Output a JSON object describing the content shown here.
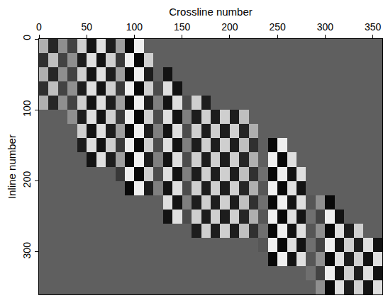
{
  "chart_data": {
    "type": "heatmap",
    "x_label": "Crossline number",
    "y_label": "Inline number",
    "x": [
      5,
      15,
      25,
      35,
      45,
      55,
      65,
      75,
      85,
      95,
      105,
      115,
      125,
      135,
      145,
      155,
      165,
      175,
      185,
      195,
      205,
      215,
      225,
      235,
      245,
      255,
      265,
      275,
      285,
      295,
      305,
      315,
      325,
      335,
      345,
      355
    ],
    "y": [
      10,
      30,
      50,
      70,
      90,
      110,
      130,
      150,
      170,
      190,
      210,
      230,
      250,
      270,
      290,
      310,
      330,
      350
    ],
    "z": [
      [
        0.5,
        -0.6,
        0.3,
        -0.3,
        0.7,
        -0.8,
        0.8,
        -0.7,
        0.4,
        -0.9,
        0.9,
        0,
        0,
        0,
        0,
        0,
        0,
        0,
        0,
        0,
        0,
        0,
        0,
        0,
        0,
        0,
        0,
        0,
        0,
        0,
        0,
        0,
        0,
        0,
        0,
        0
      ],
      [
        -0.5,
        0.6,
        -0.3,
        0.3,
        -0.7,
        0.8,
        -0.8,
        0.7,
        -0.4,
        0.9,
        -0.9,
        0.7,
        0,
        0,
        0,
        0,
        0,
        0,
        0,
        0,
        0,
        0,
        0,
        0,
        0,
        0,
        0,
        0,
        0,
        0,
        0,
        0,
        0,
        0,
        0,
        0
      ],
      [
        0.5,
        -0.6,
        0.3,
        -0.3,
        0.7,
        -0.8,
        0.8,
        -0.7,
        0.4,
        -0.9,
        0.9,
        -0.7,
        0,
        -0.8,
        0,
        0,
        0,
        0,
        0,
        0,
        0,
        0,
        0,
        0,
        0,
        0,
        0,
        0,
        0,
        0,
        0,
        0,
        0,
        0,
        0,
        0
      ],
      [
        -0.5,
        0.6,
        -0.3,
        0.3,
        -0.7,
        0.8,
        -0.8,
        0.7,
        -0.4,
        0.9,
        -0.9,
        0.7,
        -0.2,
        0.8,
        -0.8,
        0,
        0,
        0,
        0,
        0,
        0,
        0,
        0,
        0,
        0,
        0,
        0,
        0,
        0,
        0,
        0,
        0,
        0,
        0,
        0,
        0
      ],
      [
        0.5,
        -0.6,
        0.3,
        -0.3,
        0.7,
        -0.8,
        0.8,
        -0.7,
        0.4,
        -0.9,
        0.9,
        -0.7,
        0.2,
        -0.8,
        0.8,
        -0.2,
        0.7,
        -0.7,
        0,
        0,
        0,
        0,
        0,
        0,
        0,
        0,
        0,
        0,
        0,
        0,
        0,
        0,
        0,
        0,
        0,
        0
      ],
      [
        0,
        0,
        0,
        0.3,
        -0.7,
        0.8,
        -0.8,
        0.7,
        -0.4,
        0.9,
        -0.9,
        0.7,
        -0.2,
        0.8,
        -0.8,
        0.2,
        -0.7,
        0.7,
        -0.7,
        0.7,
        -0.7,
        0.6,
        0,
        0,
        0,
        0,
        0,
        0,
        0,
        0,
        0,
        0,
        0,
        0,
        0,
        0
      ],
      [
        0,
        0,
        0,
        0,
        0.7,
        -0.8,
        0.8,
        -0.7,
        0.4,
        -0.9,
        0.9,
        -0.7,
        0.2,
        -0.8,
        0.8,
        -0.2,
        0.7,
        -0.7,
        0.7,
        -0.7,
        0.7,
        -0.6,
        0.5,
        0,
        0,
        0,
        0,
        0,
        0,
        0,
        0,
        0,
        0,
        0,
        0,
        0
      ],
      [
        0,
        0,
        0,
        0,
        -0.7,
        0.8,
        -0.8,
        0.7,
        -0.4,
        0.9,
        -0.9,
        0.7,
        -0.2,
        0.8,
        -0.8,
        0.2,
        -0.7,
        0.7,
        -0.7,
        0.7,
        -0.7,
        0.6,
        -0.5,
        0,
        -0.9,
        0.9,
        0,
        0,
        0,
        0,
        0,
        0,
        0,
        0,
        0,
        0
      ],
      [
        0,
        0,
        0,
        0,
        0,
        -0.8,
        0.8,
        -0.7,
        0.4,
        -0.9,
        0.9,
        -0.7,
        0.2,
        -0.8,
        0.8,
        -0.2,
        0.7,
        -0.7,
        0.7,
        -0.7,
        0.7,
        -0.6,
        0.5,
        0,
        0.9,
        -0.9,
        0.8,
        0,
        0,
        0,
        0,
        0,
        0,
        0,
        0,
        0
      ],
      [
        0,
        0,
        0,
        0,
        0,
        0,
        0,
        0,
        -0.4,
        0.9,
        -0.9,
        0.7,
        -0.2,
        0.8,
        -0.8,
        0.2,
        -0.7,
        0.7,
        -0.7,
        0.7,
        -0.7,
        0.6,
        -0.5,
        0.1,
        -0.9,
        0.9,
        -0.8,
        0.8,
        0,
        0,
        0,
        0,
        0,
        0,
        0,
        0
      ],
      [
        0,
        0,
        0,
        0,
        0,
        0,
        0,
        0,
        0,
        -0.9,
        0.9,
        -0.7,
        0.2,
        -0.8,
        0.8,
        -0.2,
        0.7,
        -0.7,
        0.7,
        -0.7,
        0.7,
        -0.6,
        0.5,
        -0.1,
        0.9,
        -0.9,
        0.8,
        -0.8,
        0,
        0,
        0,
        0,
        0,
        0,
        0,
        0
      ],
      [
        0,
        0,
        0,
        0,
        0,
        0,
        0,
        0,
        0,
        0,
        0,
        0,
        0,
        0.8,
        -0.8,
        0.2,
        -0.7,
        0.7,
        -0.7,
        0.7,
        -0.7,
        0.6,
        -0.5,
        0.1,
        -0.9,
        0.9,
        -0.8,
        0.8,
        -0.1,
        0.3,
        -0.9,
        0,
        0,
        0,
        0,
        0
      ],
      [
        0,
        0,
        0,
        0,
        0,
        0,
        0,
        0,
        0,
        0,
        0,
        0,
        0,
        -0.8,
        0.8,
        -0.2,
        0.7,
        -0.7,
        0.7,
        -0.7,
        0.7,
        -0.6,
        0.5,
        -0.1,
        0.9,
        -0.9,
        0.8,
        -0.8,
        0.1,
        -0.3,
        0.9,
        -0.8,
        0,
        0,
        0,
        0
      ],
      [
        0,
        0,
        0,
        0,
        0,
        0,
        0,
        0,
        0,
        0,
        0,
        0,
        0,
        0,
        0,
        0,
        -0.7,
        0.7,
        -0.7,
        0.7,
        -0.7,
        0.6,
        -0.5,
        0.1,
        -0.9,
        0.9,
        -0.8,
        0.8,
        -0.1,
        0.3,
        -0.9,
        0.8,
        -0.7,
        0.7,
        0,
        0
      ],
      [
        0,
        0,
        0,
        0,
        0,
        0,
        0,
        0,
        0,
        0,
        0,
        0,
        0,
        0,
        0,
        0,
        0,
        0,
        0,
        0,
        0,
        0,
        0,
        -0.1,
        0.9,
        -0.9,
        0.8,
        -0.8,
        0.1,
        -0.3,
        0.9,
        -0.8,
        0.7,
        -0.7,
        0.8,
        -0.8
      ],
      [
        0,
        0,
        0,
        0,
        0,
        0,
        0,
        0,
        0,
        0,
        0,
        0,
        0,
        0,
        0,
        0,
        0,
        0,
        0,
        0,
        0,
        0,
        0,
        0,
        -0.9,
        0.9,
        -0.8,
        0.8,
        -0.1,
        0.3,
        -0.9,
        0.8,
        -0.7,
        0.7,
        -0.8,
        0.8
      ],
      [
        0,
        0,
        0,
        0,
        0,
        0,
        0,
        0,
        0,
        0,
        0,
        0,
        0,
        0,
        0,
        0,
        0,
        0,
        0,
        0,
        0,
        0,
        0,
        0,
        0,
        0,
        0,
        0,
        0.1,
        -0.3,
        0.9,
        -0.8,
        0.7,
        -0.7,
        0.8,
        -0.8
      ],
      [
        0,
        0,
        0,
        0,
        0,
        0,
        0,
        0,
        0,
        0,
        0,
        0,
        0,
        0,
        0,
        0,
        0,
        0,
        0,
        0,
        0,
        0,
        0,
        0,
        0,
        0,
        0,
        0,
        0,
        0.3,
        -0.9,
        0.8,
        -0.7,
        0.7,
        -0.8,
        0.8
      ]
    ],
    "zlim": [
      -1,
      1
    ],
    "xlim": [
      0,
      360
    ],
    "ylim": [
      360,
      0
    ],
    "xticks": [
      0,
      50,
      100,
      150,
      200,
      250,
      300,
      350
    ],
    "yticks": [
      0,
      100,
      200,
      300
    ],
    "grid": false
  }
}
